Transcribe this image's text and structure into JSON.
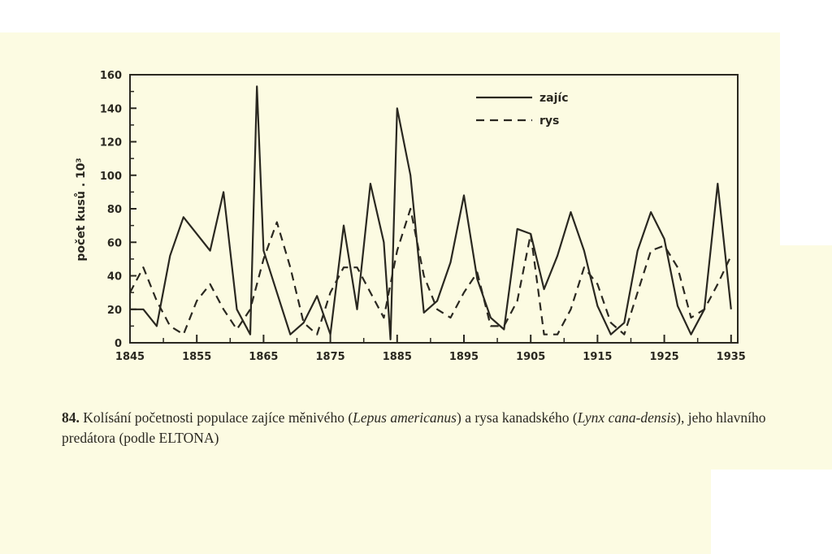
{
  "colors": {
    "paper": "#fcfbe2",
    "ink": "#2a2820"
  },
  "chart_data": {
    "type": "line",
    "title": "",
    "xlabel": "",
    "ylabel": "počet kusů . 10³",
    "xlim": [
      1845,
      1936
    ],
    "ylim": [
      0,
      160
    ],
    "yticks": [
      0,
      20,
      40,
      60,
      80,
      100,
      120,
      140,
      160
    ],
    "xticks": [
      1845,
      1855,
      1865,
      1875,
      1885,
      1895,
      1905,
      1915,
      1925,
      1935
    ],
    "grid": false,
    "legend_position": "top-right",
    "series": [
      {
        "name": "zajíc",
        "style": "solid",
        "x": [
          1845,
          1847,
          1849,
          1851,
          1853,
          1855,
          1857,
          1859,
          1861,
          1863,
          1864,
          1865,
          1867,
          1869,
          1871,
          1873,
          1875,
          1877,
          1879,
          1881,
          1883,
          1884,
          1885,
          1887,
          1889,
          1891,
          1893,
          1895,
          1897,
          1899,
          1901,
          1903,
          1905,
          1907,
          1909,
          1911,
          1913,
          1915,
          1917,
          1919,
          1921,
          1923,
          1925,
          1927,
          1929,
          1931,
          1933,
          1935
        ],
        "values": [
          20,
          20,
          10,
          52,
          75,
          65,
          55,
          90,
          20,
          5,
          153,
          55,
          30,
          5,
          12,
          28,
          5,
          70,
          20,
          95,
          60,
          2,
          140,
          100,
          18,
          25,
          48,
          88,
          38,
          15,
          8,
          68,
          65,
          32,
          52,
          78,
          55,
          22,
          5,
          12,
          55,
          78,
          62,
          22,
          5,
          20,
          95,
          20
        ]
      },
      {
        "name": "rys",
        "style": "dashed",
        "x": [
          1845,
          1847,
          1849,
          1851,
          1853,
          1855,
          1857,
          1859,
          1861,
          1863,
          1865,
          1867,
          1869,
          1871,
          1873,
          1875,
          1877,
          1879,
          1881,
          1883,
          1885,
          1887,
          1889,
          1891,
          1893,
          1895,
          1897,
          1899,
          1901,
          1903,
          1905,
          1907,
          1909,
          1911,
          1913,
          1915,
          1917,
          1919,
          1921,
          1923,
          1925,
          1927,
          1929,
          1931,
          1933,
          1935
        ],
        "values": [
          30,
          45,
          25,
          10,
          5,
          25,
          35,
          20,
          8,
          20,
          50,
          72,
          45,
          12,
          5,
          30,
          45,
          45,
          30,
          15,
          55,
          80,
          40,
          20,
          15,
          30,
          42,
          10,
          10,
          25,
          65,
          5,
          5,
          20,
          45,
          35,
          12,
          5,
          30,
          55,
          58,
          45,
          15,
          20,
          35,
          52
        ]
      }
    ]
  },
  "caption": {
    "number": "84.",
    "text1": " Kolísání početnosti populace zajíce měnivého (",
    "latin1": "Lepus americanus",
    "text2": ") a rysa kanadského (",
    "latin2": "Lynx cana-densis",
    "text3": "), jeho hlavního predátora (podle ELTONA)"
  }
}
